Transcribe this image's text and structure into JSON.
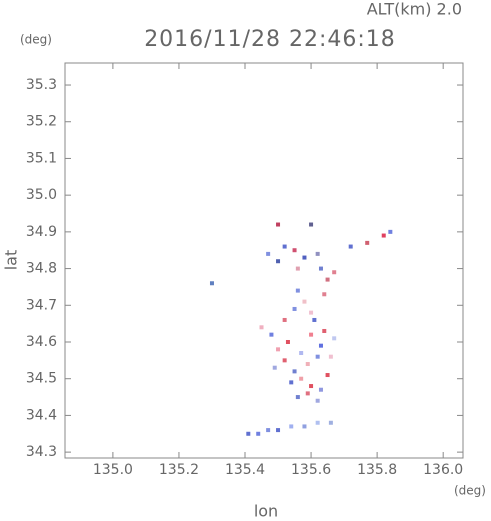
{
  "chart_data": {
    "type": "scatter",
    "title": "2016/11/28 22:46:18",
    "subtitle": "ALT(km) 2.0",
    "y_unit": "(deg)",
    "x_unit": "(deg)",
    "xlabel": "lon",
    "ylabel": "lat",
    "xlim": [
      134.855,
      136.06
    ],
    "ylim": [
      34.284,
      35.36
    ],
    "xticks": [
      {
        "value": 135,
        "label": "135.0"
      },
      135.2,
      135.4,
      135.6,
      135.8,
      {
        "value": 136,
        "label": "136.0"
      }
    ],
    "yticks": [
      34.3,
      34.4,
      34.5,
      34.6,
      34.7,
      34.8,
      34.9,
      {
        "value": 35,
        "label": "35.0"
      },
      35.1,
      35.2,
      35.3
    ],
    "x": [
      135.5,
      135.52,
      135.6,
      135.47,
      135.55,
      135.58,
      135.63,
      135.67,
      135.72,
      135.77,
      135.82,
      135.84,
      135.62,
      135.65,
      135.5,
      135.56,
      135.3,
      135.45,
      135.48,
      135.52,
      135.55,
      135.58,
      135.61,
      135.64,
      135.67,
      135.5,
      135.53,
      135.57,
      135.6,
      135.63,
      135.66,
      135.49,
      135.52,
      135.55,
      135.59,
      135.62,
      135.65,
      135.54,
      135.57,
      135.6,
      135.63,
      135.56,
      135.59,
      135.62,
      135.6,
      135.56,
      135.64,
      135.41,
      135.44,
      135.47,
      135.5,
      135.54,
      135.58,
      135.62,
      135.66
    ],
    "y": [
      34.92,
      34.86,
      34.92,
      34.84,
      34.85,
      34.83,
      34.8,
      34.79,
      34.86,
      34.87,
      34.89,
      34.9,
      34.84,
      34.77,
      34.82,
      34.8,
      34.76,
      34.64,
      34.62,
      34.66,
      34.69,
      34.71,
      34.66,
      34.63,
      34.61,
      34.58,
      34.6,
      34.57,
      34.62,
      34.59,
      34.56,
      34.53,
      34.55,
      34.52,
      34.54,
      34.56,
      34.51,
      34.49,
      34.5,
      34.48,
      34.47,
      34.45,
      34.46,
      34.44,
      34.68,
      34.74,
      34.73,
      34.35,
      34.35,
      34.36,
      34.36,
      34.37,
      34.37,
      34.38,
      34.38
    ],
    "colors": [
      "#c04060",
      "#6070d0",
      "#606090",
      "#8090e0",
      "#d05070",
      "#5060c0",
      "#7080d0",
      "#e08090",
      "#6070d0",
      "#d06070",
      "#e04060",
      "#7080e0",
      "#9090c0",
      "#d07080",
      "#5060b0",
      "#e0a0b0",
      "#6080c0",
      "#f0b0c0",
      "#7080e0",
      "#e07080",
      "#8090e0",
      "#f0c0c8",
      "#6070d0",
      "#e06070",
      "#c0c8f0",
      "#f0a0b0",
      "#e05060",
      "#b0b8f0",
      "#f08090",
      "#6070e0",
      "#f0c0d0",
      "#a0a8e0",
      "#e06070",
      "#7080d0",
      "#f0b0b8",
      "#8090e0",
      "#e05060",
      "#6070d0",
      "#f0a0a8",
      "#e05060",
      "#9098e0",
      "#7080d0",
      "#e07080",
      "#a0a8e0",
      "#f0c0d0",
      "#8090e0",
      "#e08090",
      "#6070d0",
      "#7080e0",
      "#8090e0",
      "#6070d0",
      "#a0b0f0",
      "#90a0e0",
      "#b0c0f0",
      "#a0b0e0"
    ]
  }
}
